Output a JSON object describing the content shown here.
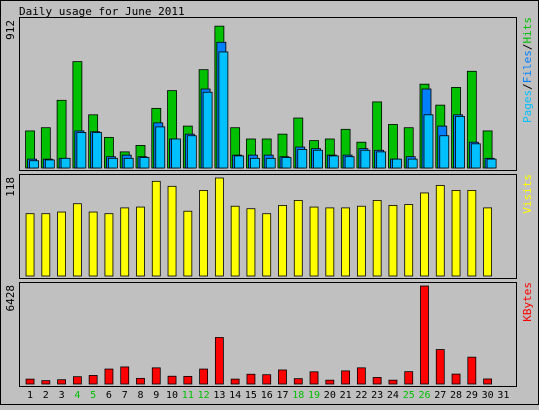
{
  "colors": {
    "background": "#c0c0c0",
    "panel": "#c0c0c0",
    "hits": "#00c000",
    "files": "#0080ff",
    "pages": "#00c0ff",
    "visits": "#ffff00",
    "kbytes": "#ff0000",
    "weekend_label": "#00c000",
    "text": "#000000"
  },
  "chart_data": {
    "type": "bar",
    "title": "Daily usage for June 2011",
    "categories": [
      "1",
      "2",
      "3",
      "4",
      "5",
      "6",
      "7",
      "8",
      "9",
      "10",
      "11",
      "12",
      "13",
      "14",
      "15",
      "16",
      "17",
      "18",
      "19",
      "20",
      "21",
      "22",
      "23",
      "24",
      "25",
      "26",
      "27",
      "28",
      "29",
      "30",
      "31"
    ],
    "weekend_days": [
      "4",
      "5",
      "11",
      "12",
      "18",
      "19",
      "25",
      "26"
    ],
    "panels": [
      {
        "id": "usage",
        "max_label": "912",
        "ymax": 912,
        "legend": [
          {
            "text": "Pages",
            "color_key": "pages"
          },
          {
            "text": "/",
            "color_key": "text"
          },
          {
            "text": "Files",
            "color_key": "files"
          },
          {
            "text": "/",
            "color_key": "text"
          },
          {
            "text": "Hits",
            "color_key": "hits"
          }
        ],
        "series": [
          {
            "key": "hits",
            "values": [
              230,
              250,
              420,
              660,
              330,
              190,
              100,
              140,
              370,
              480,
              260,
              610,
              880,
              250,
              180,
              180,
              210,
              310,
              170,
              180,
              240,
              160,
              410,
              270,
              250,
              520,
              390,
              500,
              600,
              230,
              0
            ]
          },
          {
            "key": "files",
            "values": [
              55,
              55,
              60,
              230,
              225,
              70,
              80,
              70,
              280,
              180,
              210,
              490,
              780,
              80,
              80,
              80,
              70,
              130,
              120,
              80,
              80,
              120,
              110,
              55,
              70,
              490,
              260,
              330,
              160,
              60,
              0
            ]
          },
          {
            "key": "pages",
            "values": [
              45,
              50,
              60,
              220,
              220,
              60,
              60,
              65,
              255,
              180,
              200,
              470,
              720,
              75,
              60,
              60,
              65,
              115,
              110,
              75,
              70,
              110,
              100,
              55,
              55,
              330,
              200,
              320,
              150,
              55,
              0
            ]
          }
        ]
      },
      {
        "id": "visits",
        "max_label": "118",
        "ymax": 118,
        "legend": [
          {
            "text": "Visits",
            "color_key": "visits"
          }
        ],
        "series": [
          {
            "key": "visits",
            "values": [
              75,
              75,
              77,
              87,
              77,
              75,
              82,
              83,
              114,
              108,
              78,
              103,
              118,
              84,
              81,
              75,
              85,
              91,
              83,
              82,
              82,
              84,
              91,
              85,
              86,
              100,
              109,
              103,
              103,
              82,
              0
            ]
          }
        ]
      },
      {
        "id": "kbytes",
        "max_label": "6428",
        "ymax": 6428,
        "legend": [
          {
            "text": "KBytes",
            "color_key": "kbytes"
          }
        ],
        "series": [
          {
            "key": "kbytes",
            "values": [
              320,
              220,
              280,
              480,
              560,
              980,
              1120,
              370,
              1060,
              510,
              500,
              980,
              3050,
              320,
              640,
              610,
              920,
              350,
              800,
              250,
              860,
              1060,
              430,
              250,
              810,
              6428,
              2260,
              650,
              1760,
              330,
              0
            ]
          }
        ]
      }
    ]
  }
}
